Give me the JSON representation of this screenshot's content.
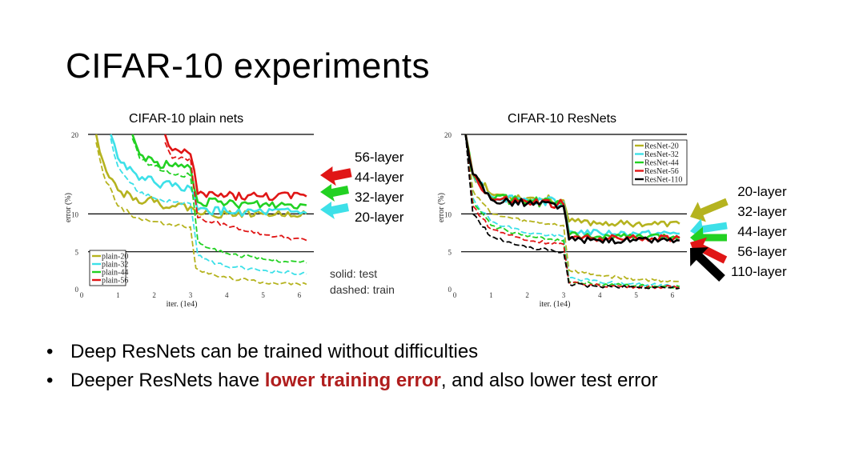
{
  "slide": {
    "title": "CIFAR-10 experiments",
    "left_annotations": [
      "56-layer",
      "44-layer",
      "32-layer",
      "20-layer"
    ],
    "right_annotations": [
      "20-layer",
      "32-layer",
      "44-layer",
      "56-layer",
      "110-layer"
    ],
    "solid_note": "solid: test",
    "dashed_note": "dashed: train",
    "bullet1": "Deep ResNets can be trained without difficulties",
    "bullet2_pre": "Deeper ResNets have ",
    "bullet2_highlight": "lower training error",
    "bullet2_post": ", and also lower test error",
    "bullet_symbol": "•"
  },
  "colors": {
    "depth20": "#b5b31f",
    "depth32": "#3de0e8",
    "depth44": "#22d122",
    "depth56": "#e01616",
    "depth110": "#000000",
    "highlight": "#b01e1e"
  },
  "chart_data": [
    {
      "type": "line",
      "title": "CIFAR-10 plain nets",
      "xlabel": "iter. (1e4)",
      "ylabel": "error (%)",
      "xlim": [
        0,
        6.4
      ],
      "ylim": [
        0,
        20
      ],
      "xticks": [
        "0",
        "1",
        "2",
        "3",
        "4",
        "5",
        "6"
      ],
      "yticks": [
        "0",
        "5",
        "10",
        "20"
      ],
      "legend": [
        "plain-20",
        "plain-32",
        "plain-44",
        "plain-56"
      ],
      "series": [
        {
          "name": "plain-20",
          "color": "#b5b31f",
          "test": [
            [
              0.4,
              20
            ],
            [
              0.6,
              16.5
            ],
            [
              1,
              13
            ],
            [
              1.5,
              12
            ],
            [
              2,
              11.5
            ],
            [
              2.5,
              11
            ],
            [
              3,
              10.9
            ],
            [
              3.2,
              10.1
            ],
            [
              4,
              10
            ],
            [
              5,
              10
            ],
            [
              6.2,
              10
            ]
          ],
          "train": [
            [
              0.4,
              19
            ],
            [
              0.6,
              15
            ],
            [
              1,
              11
            ],
            [
              1.5,
              9.5
            ],
            [
              2,
              9
            ],
            [
              2.5,
              8.5
            ],
            [
              3,
              8.3
            ],
            [
              3.15,
              2.8
            ],
            [
              3.5,
              2
            ],
            [
              4,
              1.5
            ],
            [
              5,
              0.9
            ],
            [
              6.2,
              0.6
            ]
          ]
        },
        {
          "name": "plain-32",
          "color": "#3de0e8",
          "test": [
            [
              0.8,
              20
            ],
            [
              1,
              17
            ],
            [
              1.5,
              15
            ],
            [
              2,
              14
            ],
            [
              2.5,
              13.5
            ],
            [
              3,
              13.3
            ],
            [
              3.2,
              10.5
            ],
            [
              4,
              10.3
            ],
            [
              5,
              10.2
            ],
            [
              6.2,
              10.1
            ]
          ],
          "train": [
            [
              0.8,
              19.5
            ],
            [
              1,
              16
            ],
            [
              1.5,
              13
            ],
            [
              2,
              12
            ],
            [
              2.5,
              11.5
            ],
            [
              3,
              11.3
            ],
            [
              3.2,
              4.5
            ],
            [
              3.5,
              3.8
            ],
            [
              4,
              3
            ],
            [
              5,
              2.5
            ],
            [
              6.2,
              2
            ]
          ]
        },
        {
          "name": "plain-44",
          "color": "#22d122",
          "test": [
            [
              1.4,
              20
            ],
            [
              1.6,
              17.5
            ],
            [
              2,
              16.5
            ],
            [
              2.5,
              16
            ],
            [
              3,
              15.8
            ],
            [
              3.2,
              11.5
            ],
            [
              4,
              11.3
            ],
            [
              5,
              11.2
            ],
            [
              6.2,
              11.1
            ]
          ],
          "train": [
            [
              1.4,
              19.5
            ],
            [
              1.6,
              17
            ],
            [
              2,
              16
            ],
            [
              2.5,
              15
            ],
            [
              3,
              14.8
            ],
            [
              3.2,
              6.5
            ],
            [
              3.5,
              5.5
            ],
            [
              4,
              4.8
            ],
            [
              5,
              4
            ],
            [
              6.2,
              3.5
            ]
          ]
        },
        {
          "name": "plain-56",
          "color": "#e01616",
          "test": [
            [
              2.3,
              20
            ],
            [
              2.5,
              18
            ],
            [
              3,
              17.5
            ],
            [
              3.2,
              12.5
            ],
            [
              4,
              12.3
            ],
            [
              5,
              12.2
            ],
            [
              6.2,
              12.2
            ]
          ],
          "train": [
            [
              2.3,
              19
            ],
            [
              2.5,
              17
            ],
            [
              3,
              17
            ],
            [
              3.2,
              9.5
            ],
            [
              3.5,
              9
            ],
            [
              4,
              8.5
            ],
            [
              5,
              7.3
            ],
            [
              6.2,
              6.5
            ]
          ]
        }
      ]
    },
    {
      "type": "line",
      "title": "CIFAR-10 ResNets",
      "xlabel": "iter. (1e4)",
      "ylabel": "error (%)",
      "xlim": [
        0,
        6.4
      ],
      "ylim": [
        0,
        20
      ],
      "xticks": [
        "0",
        "1",
        "2",
        "3",
        "4",
        "5",
        "6"
      ],
      "yticks": [
        "0",
        "5",
        "10",
        "20"
      ],
      "legend": [
        "ResNet-20",
        "ResNet-32",
        "ResNet-44",
        "ResNet-56",
        "ResNet-110"
      ],
      "series": [
        {
          "name": "ResNet-20",
          "color": "#b5b31f",
          "test": [
            [
              0.3,
              20
            ],
            [
              0.5,
              15
            ],
            [
              1,
              12.5
            ],
            [
              2,
              12
            ],
            [
              3,
              11.7
            ],
            [
              3.15,
              9
            ],
            [
              4,
              8.8
            ],
            [
              5,
              8.7
            ],
            [
              6.2,
              8.7
            ]
          ],
          "train": [
            [
              0.3,
              20
            ],
            [
              0.5,
              13
            ],
            [
              1,
              10
            ],
            [
              2,
              9
            ],
            [
              3,
              8.5
            ],
            [
              3.15,
              2.5
            ],
            [
              4,
              1.8
            ],
            [
              5,
              1.3
            ],
            [
              6.2,
              1
            ]
          ]
        },
        {
          "name": "ResNet-32",
          "color": "#3de0e8",
          "test": [
            [
              0.3,
              20
            ],
            [
              0.5,
              15
            ],
            [
              1,
              12.2
            ],
            [
              2,
              11.8
            ],
            [
              3,
              11.5
            ],
            [
              3.15,
              7.7
            ],
            [
              4,
              7.5
            ],
            [
              5,
              7.4
            ],
            [
              6.2,
              7.4
            ]
          ],
          "train": [
            [
              0.3,
              20
            ],
            [
              0.5,
              12
            ],
            [
              1,
              9
            ],
            [
              2,
              7.5
            ],
            [
              3,
              7
            ],
            [
              3.15,
              1.5
            ],
            [
              4,
              0.9
            ],
            [
              5,
              0.6
            ],
            [
              6.2,
              0.4
            ]
          ]
        },
        {
          "name": "ResNet-44",
          "color": "#22d122",
          "test": [
            [
              0.3,
              20
            ],
            [
              0.5,
              15
            ],
            [
              1,
              12
            ],
            [
              2,
              11.6
            ],
            [
              3,
              11.3
            ],
            [
              3.15,
              7.2
            ],
            [
              4,
              7
            ],
            [
              5,
              7
            ],
            [
              6.2,
              7
            ]
          ],
          "train": [
            [
              0.3,
              20
            ],
            [
              0.5,
              11.5
            ],
            [
              1,
              8.5
            ],
            [
              2,
              7
            ],
            [
              3,
              6.5
            ],
            [
              3.15,
              1
            ],
            [
              4,
              0.6
            ],
            [
              5,
              0.4
            ],
            [
              6.2,
              0.3
            ]
          ]
        },
        {
          "name": "ResNet-56",
          "color": "#e01616",
          "test": [
            [
              0.3,
              20
            ],
            [
              0.5,
              15
            ],
            [
              1,
              11.9
            ],
            [
              2,
              11.5
            ],
            [
              3,
              11.2
            ],
            [
              3.15,
              6.9
            ],
            [
              4,
              6.8
            ],
            [
              5,
              6.8
            ],
            [
              6.2,
              6.8
            ]
          ],
          "train": [
            [
              0.3,
              20
            ],
            [
              0.5,
              11
            ],
            [
              1,
              8
            ],
            [
              2,
              6.5
            ],
            [
              3,
              6
            ],
            [
              3.15,
              0.8
            ],
            [
              4,
              0.4
            ],
            [
              5,
              0.3
            ],
            [
              6.2,
              0.2
            ]
          ]
        },
        {
          "name": "ResNet-110",
          "color": "#000000",
          "test": [
            [
              0.3,
              20
            ],
            [
              0.5,
              15
            ],
            [
              1,
              11.8
            ],
            [
              2,
              11.3
            ],
            [
              3,
              11
            ],
            [
              3.15,
              6.6
            ],
            [
              4,
              6.5
            ],
            [
              5,
              6.5
            ],
            [
              6.2,
              6.5
            ]
          ],
          "train": [
            [
              0.3,
              20
            ],
            [
              0.5,
              10
            ],
            [
              1,
              7
            ],
            [
              2,
              5.5
            ],
            [
              3,
              5
            ],
            [
              3.15,
              0.6
            ],
            [
              4,
              0.3
            ],
            [
              5,
              0.2
            ],
            [
              6.2,
              0.1
            ]
          ]
        }
      ]
    }
  ]
}
